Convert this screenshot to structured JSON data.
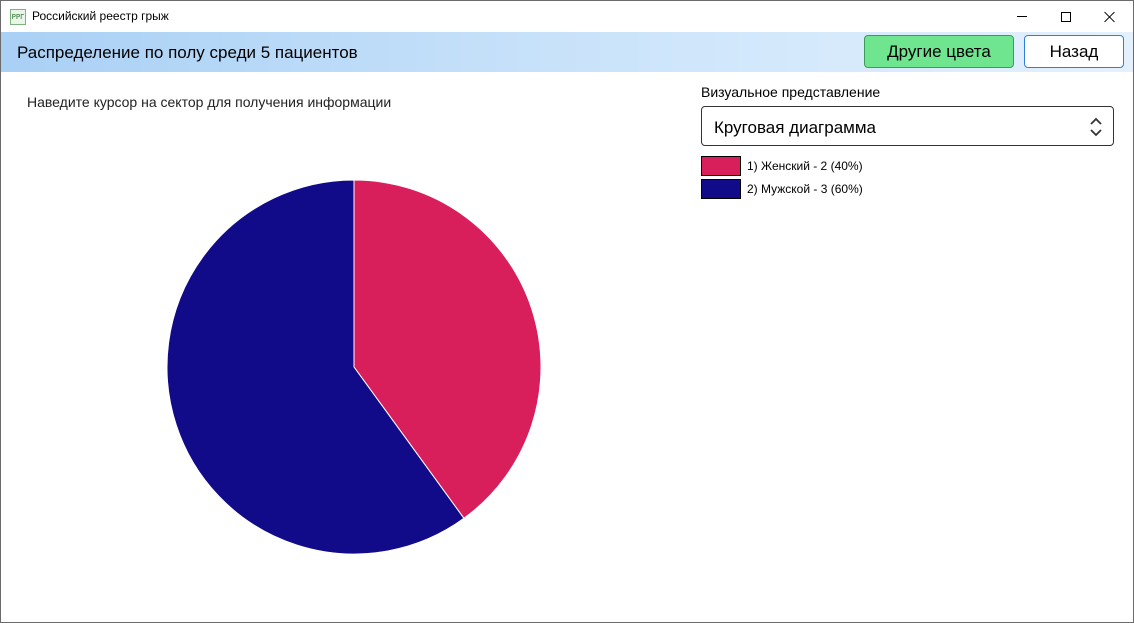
{
  "window": {
    "icon_text": "РРГ",
    "title": "Российский реестр грыж"
  },
  "header": {
    "title": "Распределение по полу среди 5 пациентов",
    "colors_button": "Другие цвета",
    "back_button": "Назад"
  },
  "hint": "Наведите курсор на сектор для получения информации",
  "visual": {
    "label": "Визуальное представление",
    "selected": "Круговая диаграмма"
  },
  "legend": [
    {
      "label": "1) Женский - 2 (40%)",
      "color": "#d81e5b"
    },
    {
      "label": "2) Мужской - 3 (60%)",
      "color": "#110b8a"
    }
  ],
  "chart_data": {
    "type": "pie",
    "categories": [
      "Женский",
      "Мужской"
    ],
    "values": [
      2,
      3
    ],
    "percents": [
      40,
      60
    ],
    "colors": [
      "#d81e5b",
      "#110b8a"
    ],
    "start_angle": "12 o'clock",
    "direction": "clockwise"
  }
}
